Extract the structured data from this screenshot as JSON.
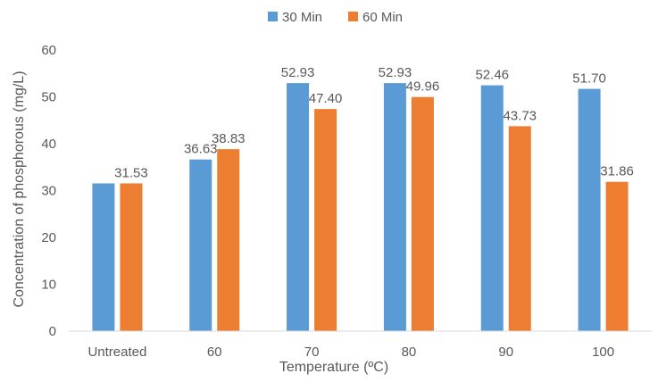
{
  "chart_data": {
    "type": "bar",
    "title": "",
    "xlabel": "Temperature (ºC)",
    "ylabel": "Concentration of phosphorous (mg/L)",
    "ylim": [
      0,
      60
    ],
    "yticks": [
      0,
      10,
      20,
      30,
      40,
      50,
      60
    ],
    "categories": [
      "Untreated",
      "60",
      "70",
      "80",
      "90",
      "100"
    ],
    "series": [
      {
        "name": "30 Min",
        "color": "#5b9bd5",
        "values": [
          31.53,
          36.63,
          52.93,
          52.93,
          52.46,
          51.7
        ],
        "labels": [
          "",
          "36.63",
          "52.93",
          "52.93",
          "52.46",
          "51.70"
        ]
      },
      {
        "name": "60 Min",
        "color": "#ed7d31",
        "values": [
          31.53,
          38.83,
          47.4,
          49.96,
          43.73,
          31.86
        ],
        "labels": [
          "31.53",
          "38.83",
          "47.40",
          "49.96",
          "43.73",
          "31.86"
        ]
      }
    ],
    "grid": false,
    "legend": "top-center"
  }
}
